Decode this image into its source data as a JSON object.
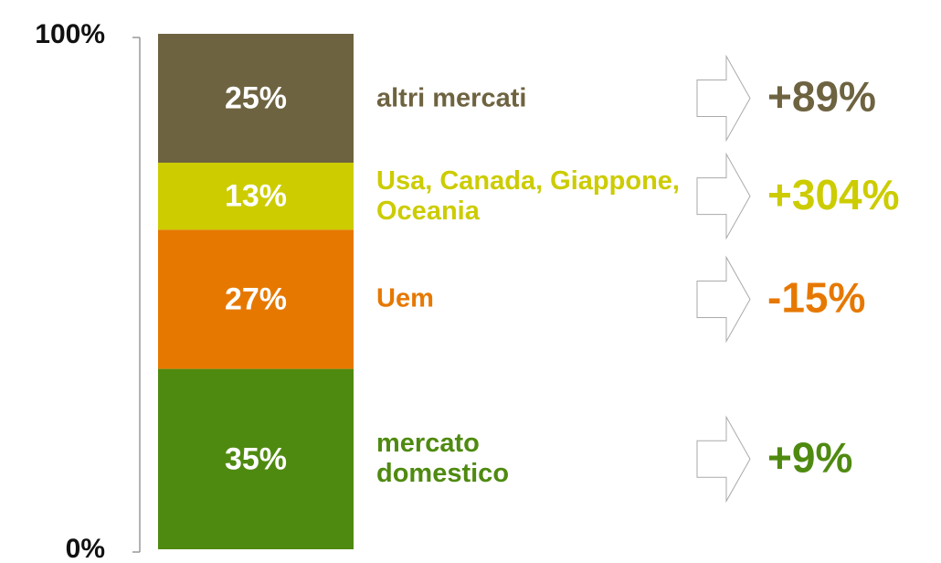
{
  "chart_data": {
    "type": "stacked_bar",
    "ylim": [
      0,
      100
    ],
    "yticks": [
      {
        "value": 0,
        "label": "0%"
      },
      {
        "value": 100,
        "label": "100%"
      }
    ],
    "series": [
      {
        "name": "mercato domestico",
        "color": "#4f8a10",
        "values": [
          35
        ],
        "value_labels": [
          "35%"
        ],
        "change": "+9%"
      },
      {
        "name": "Uem",
        "color": "#e67800",
        "values": [
          27
        ],
        "value_labels": [
          "27%"
        ],
        "change": "-15%"
      },
      {
        "name": "Usa, Canada, Giappone, Oceania",
        "color": "#cccc00",
        "values": [
          13
        ],
        "value_labels": [
          "13%"
        ],
        "change": "+304%"
      },
      {
        "name": "altri mercati",
        "color": "#6e6340",
        "values": [
          25
        ],
        "value_labels": [
          "25%"
        ],
        "change": "+89%"
      }
    ]
  }
}
